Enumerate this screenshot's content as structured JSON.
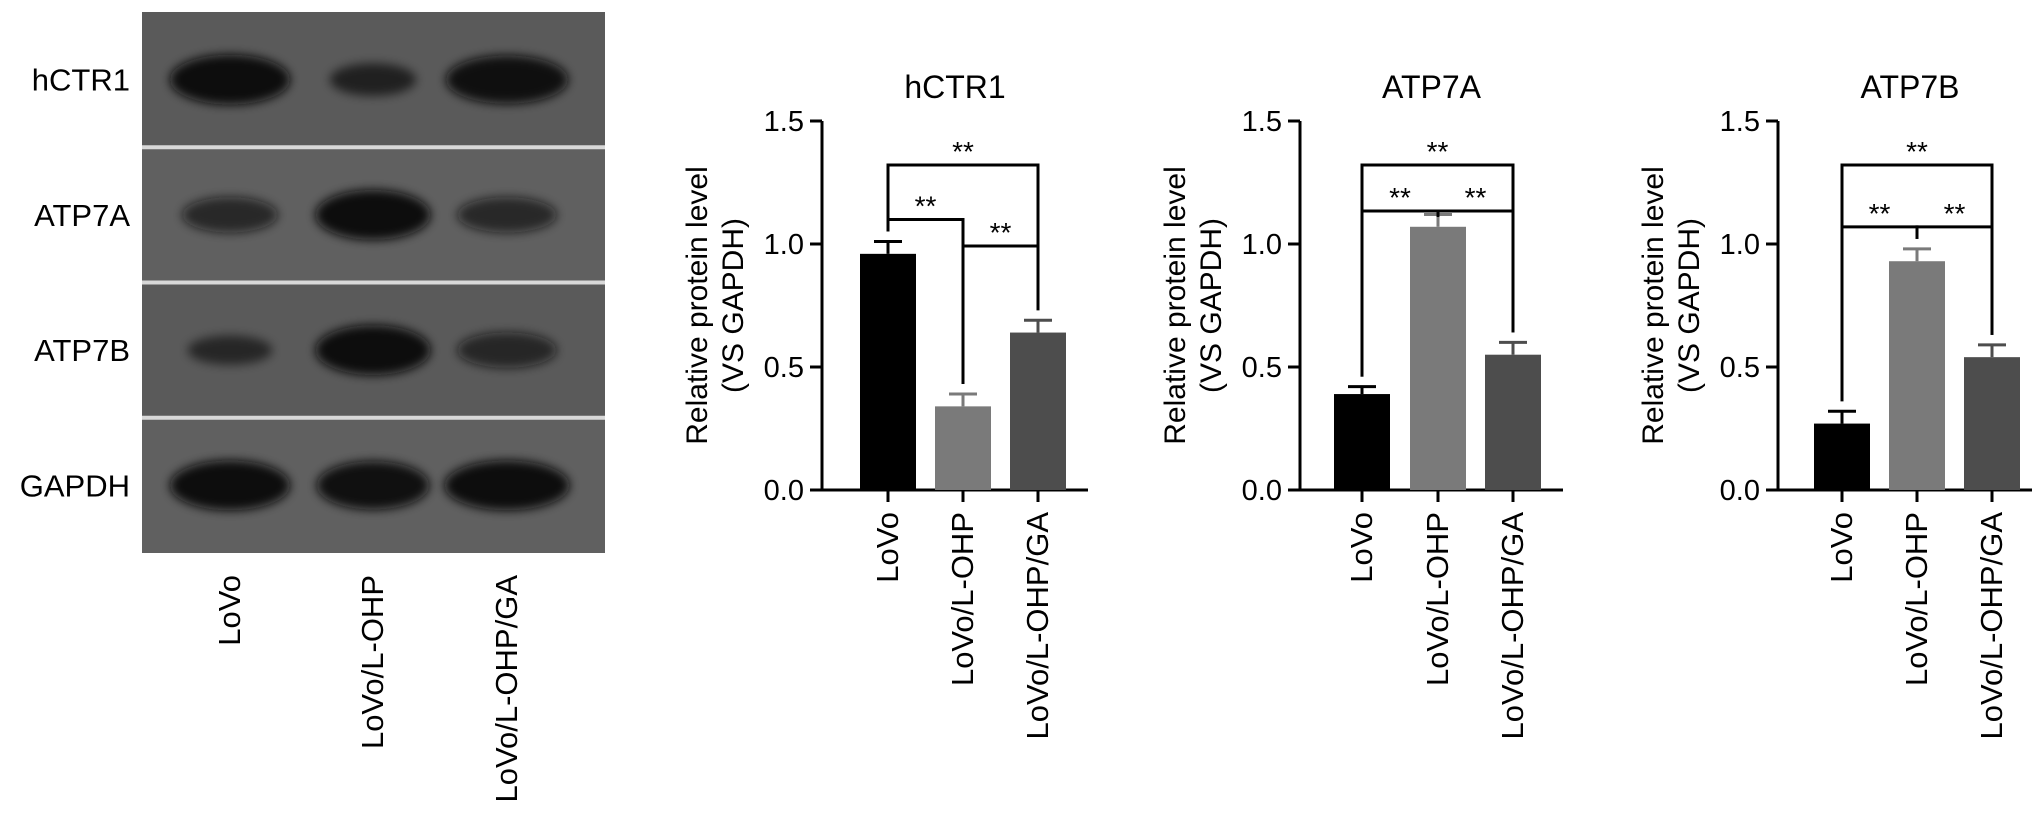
{
  "blot": {
    "proteins": [
      "hCTR1",
      "ATP7A",
      "ATP7B",
      "GAPDH"
    ],
    "lanes": [
      "LoVo",
      "LoVo/L-OHP",
      "LoVo/L-OHP/GA"
    ],
    "band_intensity": [
      [
        1.0,
        0.45,
        0.95
      ],
      [
        0.55,
        1.0,
        0.55
      ],
      [
        0.35,
        1.0,
        0.55
      ],
      [
        1.0,
        0.95,
        1.0
      ]
    ]
  },
  "chart_data": [
    {
      "type": "bar",
      "title": "hCTR1",
      "ylabel": [
        "Relative protein level",
        "(VS GAPDH)"
      ],
      "categories": [
        "LoVo",
        "LoVo/L-OHP",
        "LoVo/L-OHP/GA"
      ],
      "values": [
        0.96,
        0.34,
        0.64
      ],
      "errors": [
        0.05,
        0.05,
        0.05
      ],
      "ylim": [
        0,
        1.5
      ],
      "yticks": [
        "0.0",
        "0.5",
        "1.0",
        "1.5"
      ],
      "bar_colors": [
        "#000000",
        "#7a7a7a",
        "#4d4d4d"
      ],
      "significance": [
        {
          "from": 0,
          "to": 1,
          "label": "**"
        },
        {
          "from": 1,
          "to": 2,
          "label": "**"
        },
        {
          "from": 0,
          "to": 2,
          "label": "**"
        }
      ]
    },
    {
      "type": "bar",
      "title": "ATP7A",
      "ylabel": [
        "Relative protein level",
        "(VS GAPDH)"
      ],
      "categories": [
        "LoVo",
        "LoVo/L-OHP",
        "LoVo/L-OHP/GA"
      ],
      "values": [
        0.39,
        1.07,
        0.55
      ],
      "errors": [
        0.03,
        0.05,
        0.05
      ],
      "ylim": [
        0,
        1.5
      ],
      "yticks": [
        "0.0",
        "0.5",
        "1.0",
        "1.5"
      ],
      "bar_colors": [
        "#000000",
        "#7a7a7a",
        "#4d4d4d"
      ],
      "significance": [
        {
          "from": 0,
          "to": 1,
          "label": "**"
        },
        {
          "from": 1,
          "to": 2,
          "label": "**"
        },
        {
          "from": 0,
          "to": 2,
          "label": "**"
        }
      ]
    },
    {
      "type": "bar",
      "title": "ATP7B",
      "ylabel": [
        "Relative protein level",
        "(VS GAPDH)"
      ],
      "categories": [
        "LoVo",
        "LoVo/L-OHP",
        "LoVo/L-OHP/GA"
      ],
      "values": [
        0.27,
        0.93,
        0.54
      ],
      "errors": [
        0.05,
        0.05,
        0.05
      ],
      "ylim": [
        0,
        1.5
      ],
      "yticks": [
        "0.0",
        "0.5",
        "1.0",
        "1.5"
      ],
      "bar_colors": [
        "#000000",
        "#7a7a7a",
        "#4d4d4d"
      ],
      "significance": [
        {
          "from": 0,
          "to": 1,
          "label": "**"
        },
        {
          "from": 1,
          "to": 2,
          "label": "**"
        },
        {
          "from": 0,
          "to": 2,
          "label": "**"
        }
      ]
    }
  ]
}
